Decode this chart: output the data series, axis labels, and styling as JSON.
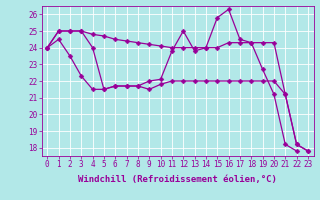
{
  "background_color": "#b2e8e8",
  "grid_color": "#ffffff",
  "line_color": "#990099",
  "marker": "D",
  "markersize": 2.5,
  "linewidth": 0.9,
  "xlabel": "Windchill (Refroidissement éolien,°C)",
  "xlabel_fontsize": 6.5,
  "tick_fontsize": 5.5,
  "xlim": [
    -0.5,
    23.5
  ],
  "ylim": [
    17.5,
    26.5
  ],
  "yticks": [
    18,
    19,
    20,
    21,
    22,
    23,
    24,
    25,
    26
  ],
  "xticks": [
    0,
    1,
    2,
    3,
    4,
    5,
    6,
    7,
    8,
    9,
    10,
    11,
    12,
    13,
    14,
    15,
    16,
    17,
    18,
    19,
    20,
    21,
    22,
    23
  ],
  "series": [
    [
      24.0,
      25.0,
      25.0,
      25.0,
      24.8,
      24.7,
      24.5,
      24.4,
      24.3,
      24.2,
      24.1,
      24.0,
      24.0,
      24.0,
      24.0,
      24.0,
      24.3,
      24.3,
      24.3,
      24.3,
      24.3,
      21.2,
      18.2,
      17.8
    ],
    [
      24.0,
      25.0,
      25.0,
      25.0,
      24.0,
      21.5,
      21.7,
      21.7,
      21.7,
      22.0,
      22.1,
      23.8,
      25.0,
      23.8,
      24.0,
      25.8,
      26.3,
      24.5,
      24.3,
      22.7,
      21.2,
      18.2,
      17.8
    ],
    [
      24.0,
      24.5,
      23.5,
      22.3,
      21.5,
      21.5,
      21.7,
      21.7,
      21.7,
      21.5,
      21.8,
      22.0,
      22.0,
      22.0,
      22.0,
      22.0,
      22.0,
      22.0,
      22.0,
      22.0,
      22.0,
      21.2,
      18.2,
      17.8
    ]
  ],
  "series_x": [
    [
      0,
      1,
      2,
      3,
      4,
      5,
      6,
      7,
      8,
      9,
      10,
      11,
      12,
      13,
      14,
      15,
      16,
      17,
      18,
      19,
      20,
      21,
      22,
      23
    ],
    [
      0,
      1,
      2,
      3,
      4,
      5,
      6,
      7,
      8,
      9,
      10,
      11,
      12,
      13,
      14,
      15,
      16,
      17,
      18,
      19,
      20,
      21,
      22
    ],
    [
      0,
      1,
      2,
      3,
      4,
      5,
      6,
      7,
      8,
      9,
      10,
      11,
      12,
      13,
      14,
      15,
      16,
      17,
      18,
      19,
      20,
      21,
      22,
      23
    ]
  ]
}
